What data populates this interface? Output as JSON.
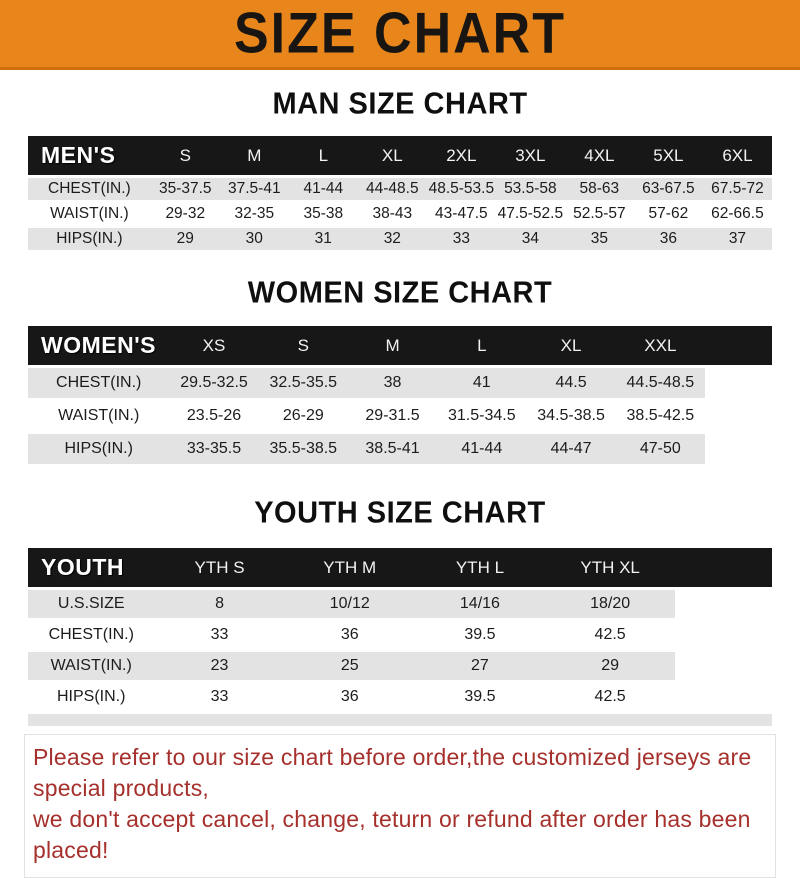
{
  "banner": {
    "title": "SIZE CHART",
    "bg_color": "#E8861B",
    "text_color": "#181512"
  },
  "sections": [
    {
      "heading": "MAN SIZE CHART",
      "header_label": "MEN'S",
      "columns": [
        "S",
        "M",
        "L",
        "XL",
        "2XL",
        "3XL",
        "4XL",
        "5XL",
        "6XL"
      ],
      "rows": [
        {
          "label": "CHEST(IN.)",
          "values": [
            "35-37.5",
            "37.5-41",
            "41-44",
            "44-48.5",
            "48.5-53.5",
            "53.5-58",
            "58-63",
            "63-67.5",
            "67.5-72"
          ]
        },
        {
          "label": "WAIST(IN.)",
          "values": [
            "29-32",
            "32-35",
            "35-38",
            "38-43",
            "43-47.5",
            "47.5-52.5",
            "52.5-57",
            "57-62",
            "62-66.5"
          ]
        },
        {
          "label": "HIPS(IN.)",
          "values": [
            "29",
            "30",
            "31",
            "32",
            "33",
            "34",
            "35",
            "36",
            "37"
          ]
        }
      ]
    },
    {
      "heading": "WOMEN SIZE CHART",
      "header_label": "WOMEN'S",
      "columns": [
        "XS",
        "S",
        "M",
        "L",
        "XL",
        "XXL"
      ],
      "rows": [
        {
          "label": "CHEST(IN.)",
          "values": [
            "29.5-32.5",
            "32.5-35.5",
            "38",
            "41",
            "44.5",
            "44.5-48.5"
          ]
        },
        {
          "label": "WAIST(IN.)",
          "values": [
            "23.5-26",
            "26-29",
            "29-31.5",
            "31.5-34.5",
            "34.5-38.5",
            "38.5-42.5"
          ]
        },
        {
          "label": "HIPS(IN.)",
          "values": [
            "33-35.5",
            "35.5-38.5",
            "38.5-41",
            "41-44",
            "44-47",
            "47-50"
          ]
        }
      ]
    },
    {
      "heading": "YOUTH SIZE CHART",
      "header_label": "YOUTH",
      "columns": [
        "YTH S",
        "YTH M",
        "YTH L",
        "YTH XL"
      ],
      "rows": [
        {
          "label": "U.S.SIZE",
          "values": [
            "8",
            "10/12",
            "14/16",
            "18/20"
          ]
        },
        {
          "label": "CHEST(IN.)",
          "values": [
            "33",
            "36",
            "39.5",
            "42.5"
          ]
        },
        {
          "label": "WAIST(IN.)",
          "values": [
            "23",
            "25",
            "27",
            "29"
          ]
        },
        {
          "label": "HIPS(IN.)",
          "values": [
            "33",
            "36",
            "39.5",
            "42.5"
          ]
        }
      ]
    }
  ],
  "footer": {
    "line1": "Please refer to our size chart before order,the customized jerseys are special products,",
    "line2": "we don't accept cancel, change, teturn or refund after order has been placed!",
    "text_color": "#A5302C"
  },
  "colors": {
    "banner_orange": "#E8861B",
    "banner_border": "#cf700f",
    "table_header_black": "#171717",
    "row_gray": "#E3E3E3",
    "footer_red": "#A5302C"
  }
}
